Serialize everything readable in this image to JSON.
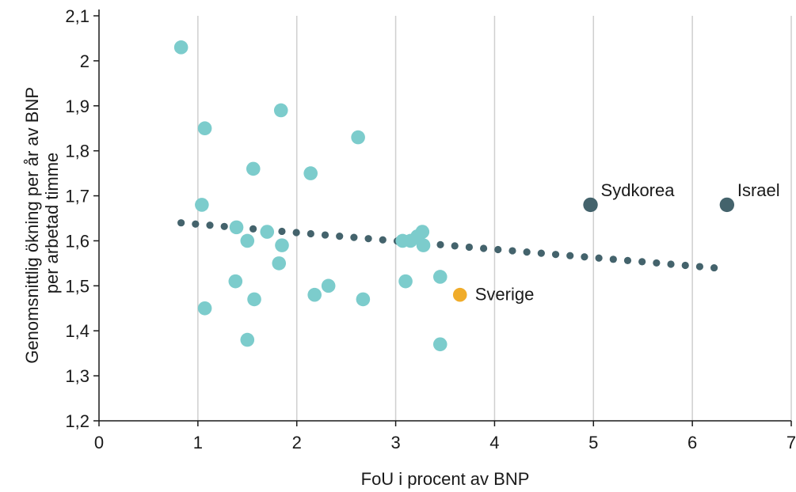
{
  "chart_data": {
    "type": "scatter",
    "xlabel": "FoU i procent av BNP",
    "ylabel_lines": [
      "Genomsnittlig ökning per år av BNP",
      "per arbetad timme"
    ],
    "xlim": [
      0,
      7
    ],
    "ylim": [
      1.2,
      2.1
    ],
    "x_ticks": [
      0,
      1,
      2,
      3,
      4,
      5,
      6,
      7
    ],
    "x_tick_labels": [
      "0",
      "1",
      "2",
      "3",
      "4",
      "5",
      "6",
      "7"
    ],
    "y_ticks": [
      1.2,
      1.3,
      1.4,
      1.5,
      1.6,
      1.7,
      1.8,
      1.9,
      2.0,
      2.1
    ],
    "y_tick_labels": [
      "1,2",
      "1,3",
      "1,4",
      "1,5",
      "1,6",
      "1,7",
      "1,8",
      "1,9",
      "2",
      "2,1"
    ],
    "grid": "vertical",
    "colors": {
      "countries": "#7ccccc",
      "highlight_dark": "#44636c",
      "sverige": "#f0ac2a",
      "trend": "#44636c",
      "grid": "#cfcfcf",
      "axis": "#1a1a1a"
    },
    "series": [
      {
        "role": "countries",
        "points": [
          [
            0.83,
            2.03
          ],
          [
            1.07,
            1.85
          ],
          [
            1.04,
            1.68
          ],
          [
            1.07,
            1.45
          ],
          [
            1.39,
            1.63
          ],
          [
            1.5,
            1.6
          ],
          [
            1.38,
            1.51
          ],
          [
            1.5,
            1.38
          ],
          [
            1.56,
            1.76
          ],
          [
            1.57,
            1.47
          ],
          [
            1.7,
            1.62
          ],
          [
            1.84,
            1.89
          ],
          [
            1.85,
            1.59
          ],
          [
            1.82,
            1.55
          ],
          [
            2.14,
            1.75
          ],
          [
            2.18,
            1.48
          ],
          [
            2.32,
            1.5
          ],
          [
            2.62,
            1.83
          ],
          [
            2.67,
            1.47
          ],
          [
            3.07,
            1.6
          ],
          [
            3.1,
            1.51
          ],
          [
            3.15,
            1.6
          ],
          [
            3.22,
            1.61
          ],
          [
            3.27,
            1.62
          ],
          [
            3.28,
            1.59
          ],
          [
            3.45,
            1.52
          ],
          [
            3.45,
            1.37
          ]
        ]
      },
      {
        "role": "highlighted",
        "points": [
          {
            "x": 4.97,
            "y": 1.68,
            "label": "Sydkorea"
          },
          {
            "x": 6.35,
            "y": 1.68,
            "label": "Israel"
          }
        ]
      },
      {
        "role": "sverige",
        "points": [
          {
            "x": 3.65,
            "y": 1.48,
            "label": "Sverige"
          }
        ]
      }
    ],
    "trendline": {
      "style": "dotted",
      "from": [
        0.83,
        1.64
      ],
      "to": [
        6.22,
        1.54
      ]
    }
  }
}
